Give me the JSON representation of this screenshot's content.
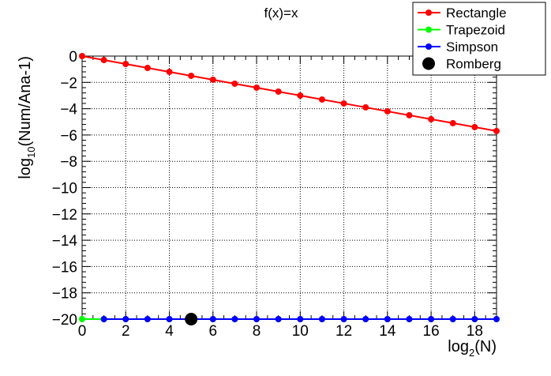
{
  "chart_data": {
    "type": "line",
    "title": "f(x)=x",
    "xlabel": {
      "base": "log",
      "sub": "2",
      "rest": "(N)"
    },
    "ylabel": {
      "base": "log",
      "sub": "10",
      "rest": "(Num/Ana-1)"
    },
    "xlim": [
      0,
      19
    ],
    "ylim": [
      -20,
      0
    ],
    "x_ticks": [
      0,
      2,
      4,
      6,
      8,
      10,
      12,
      14,
      16,
      18
    ],
    "y_ticks": [
      0,
      -2,
      -4,
      -6,
      -8,
      -10,
      -12,
      -14,
      -16,
      -18,
      -20
    ],
    "grid": true,
    "legend_position": "top-right",
    "series": [
      {
        "name": "Rectangle",
        "color": "#ff0000",
        "marker": "circle",
        "line": true,
        "x": [
          0,
          1,
          2,
          3,
          4,
          5,
          6,
          7,
          8,
          9,
          10,
          11,
          12,
          13,
          14,
          15,
          16,
          17,
          18,
          19
        ],
        "y": [
          0,
          -0.3,
          -0.6,
          -0.9,
          -1.2,
          -1.5,
          -1.8,
          -2.1,
          -2.4,
          -2.7,
          -3.0,
          -3.3,
          -3.6,
          -3.9,
          -4.2,
          -4.5,
          -4.8,
          -5.1,
          -5.4,
          -5.7
        ]
      },
      {
        "name": "Trapezoid",
        "color": "#00ff00",
        "marker": "circle",
        "line": true,
        "x": [
          0,
          1
        ],
        "y": [
          -20,
          -20
        ]
      },
      {
        "name": "Simpson",
        "color": "#0000ff",
        "marker": "circle",
        "line": true,
        "x": [
          1,
          2,
          3,
          4,
          5,
          6,
          7,
          8,
          9,
          10,
          11,
          12,
          13,
          14,
          15,
          16,
          17,
          18,
          19
        ],
        "y": [
          -20,
          -20,
          -20,
          -20,
          -20,
          -20,
          -20,
          -20,
          -20,
          -20,
          -20,
          -20,
          -20,
          -20,
          -20,
          -20,
          -20,
          -20,
          -20
        ]
      },
      {
        "name": "Romberg",
        "color": "#000000",
        "marker": "big-circle",
        "line": false,
        "x": [
          5
        ],
        "y": [
          -20
        ]
      }
    ]
  }
}
